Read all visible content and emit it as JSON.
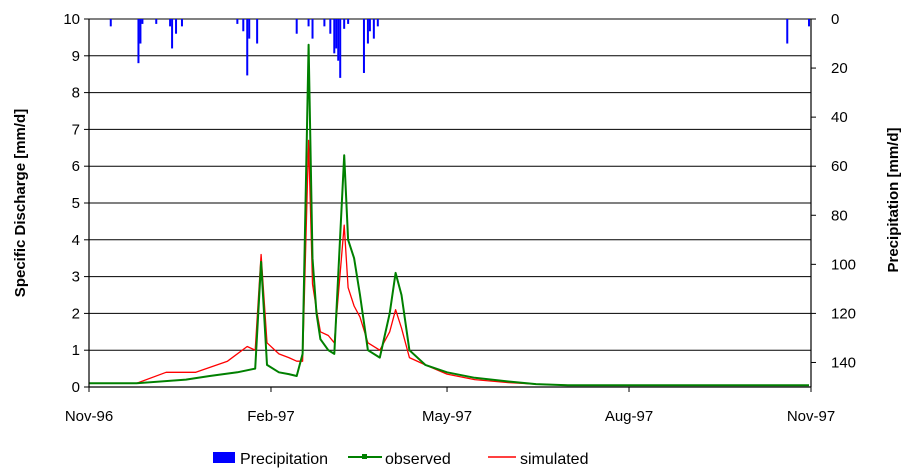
{
  "chart_data": {
    "type": "line",
    "title": "",
    "ylabel_left": "Specific Discharge [mm/d]",
    "ylabel_right": "Precipitation [mm/d]",
    "x_ticks": [
      "Nov-96",
      "Feb-97",
      "May-97",
      "Aug-97",
      "Nov-97"
    ],
    "x_tick_days": [
      0,
      92,
      181,
      273,
      365
    ],
    "y_left_ticks": [
      "0",
      "1",
      "2",
      "3",
      "4",
      "5",
      "6",
      "7",
      "8",
      "9",
      "10"
    ],
    "y_right_ticks": [
      "0",
      "20",
      "40",
      "60",
      "80",
      "100",
      "120",
      "140"
    ],
    "ylim_left": [
      0,
      10
    ],
    "ylim_right_inverted": [
      0,
      150
    ],
    "grid": true,
    "legend_position": "bottom",
    "legend": [
      {
        "label": "Precipitation",
        "style": "bar"
      },
      {
        "label": "observed",
        "style": "line-marker"
      },
      {
        "label": "simulated",
        "style": "line"
      }
    ],
    "colors": {
      "precipitation": "#0000ff",
      "observed": "#008000",
      "simulated": "#ff0000"
    },
    "series": [
      {
        "name": "observed",
        "x": [
          "1996-11-01",
          "1996-11-25",
          "1996-12-20",
          "1997-01-01",
          "1997-01-15",
          "1997-01-24",
          "1997-01-27",
          "1997-01-30",
          "1997-02-05",
          "1997-02-10",
          "1997-02-14",
          "1997-02-17",
          "1997-02-20",
          "1997-02-22",
          "1997-02-24",
          "1997-02-26",
          "1997-03-02",
          "1997-03-05",
          "1997-03-10",
          "1997-03-12",
          "1997-03-15",
          "1997-03-18",
          "1997-03-22",
          "1997-03-28",
          "1997-04-02",
          "1997-04-05",
          "1997-04-08",
          "1997-04-12",
          "1997-04-20",
          "1997-05-01",
          "1997-05-15",
          "1997-06-01",
          "1997-06-15",
          "1997-07-01",
          "1997-10-31"
        ],
        "values": [
          0.1,
          0.1,
          0.2,
          0.3,
          0.4,
          0.5,
          3.4,
          0.6,
          0.4,
          0.35,
          0.3,
          0.9,
          9.3,
          3.5,
          2.0,
          1.3,
          1.0,
          0.9,
          6.3,
          4.0,
          3.5,
          2.5,
          1.0,
          0.8,
          2.0,
          3.1,
          2.5,
          1.0,
          0.6,
          0.4,
          0.25,
          0.15,
          0.08,
          0.05,
          0.05
        ]
      },
      {
        "name": "simulated",
        "x": [
          "1996-11-01",
          "1996-11-25",
          "1996-12-10",
          "1996-12-25",
          "1997-01-10",
          "1997-01-20",
          "1997-01-24",
          "1997-01-27",
          "1997-01-30",
          "1997-02-05",
          "1997-02-10",
          "1997-02-14",
          "1997-02-17",
          "1997-02-20",
          "1997-02-22",
          "1997-02-24",
          "1997-02-26",
          "1997-03-02",
          "1997-03-05",
          "1997-03-10",
          "1997-03-12",
          "1997-03-15",
          "1997-03-18",
          "1997-03-22",
          "1997-03-28",
          "1997-04-02",
          "1997-04-05",
          "1997-04-08",
          "1997-04-12",
          "1997-04-20",
          "1997-05-01",
          "1997-05-15",
          "1997-06-01",
          "1997-06-15",
          "1997-07-01",
          "1997-10-31"
        ],
        "values": [
          0.1,
          0.1,
          0.4,
          0.4,
          0.7,
          1.1,
          1.0,
          3.6,
          1.2,
          0.9,
          0.8,
          0.7,
          0.7,
          6.7,
          2.8,
          2.1,
          1.5,
          1.4,
          1.2,
          4.4,
          2.7,
          2.2,
          1.9,
          1.2,
          1.0,
          1.5,
          2.1,
          1.6,
          0.8,
          0.6,
          0.35,
          0.2,
          0.12,
          0.08,
          0.05,
          0.05
        ]
      }
    ],
    "precipitation": {
      "x": [
        "1996-11-12",
        "1996-11-26",
        "1996-11-27",
        "1996-11-28",
        "1996-12-05",
        "1996-12-12",
        "1996-12-13",
        "1996-12-15",
        "1996-12-18",
        "1997-01-15",
        "1997-01-18",
        "1997-01-20",
        "1997-01-21",
        "1997-01-25",
        "1997-02-14",
        "1997-02-20",
        "1997-02-22",
        "1997-02-28",
        "1997-03-03",
        "1997-03-05",
        "1997-03-06",
        "1997-03-07",
        "1997-03-08",
        "1997-03-10",
        "1997-03-12",
        "1997-03-20",
        "1997-03-22",
        "1997-03-23",
        "1997-03-25",
        "1997-03-27",
        "1997-10-20",
        "1997-10-31"
      ],
      "values": [
        3,
        18,
        10,
        2,
        2,
        3,
        12,
        6,
        3,
        2,
        5,
        23,
        8,
        10,
        6,
        3,
        8,
        3,
        6,
        14,
        12,
        17,
        24,
        4,
        2,
        22,
        10,
        5,
        8,
        3,
        10,
        3
      ]
    }
  }
}
